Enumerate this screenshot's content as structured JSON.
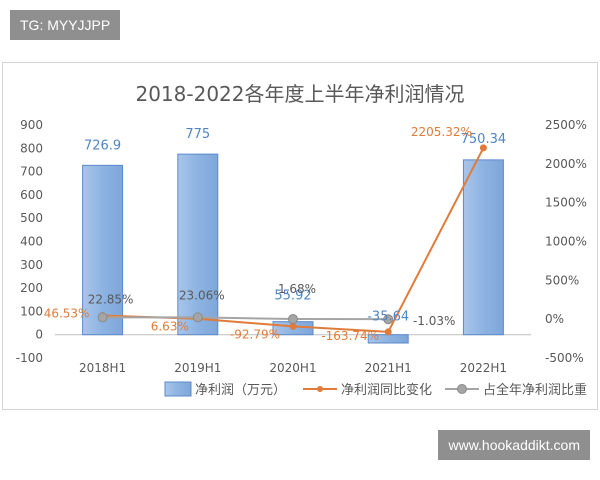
{
  "tag": "TG: MYYJJPP",
  "watermark": "www.hookaddikt.com",
  "chart_data": {
    "type": "bar",
    "title": "2018-2022各年度上半年净利润情况",
    "categories": [
      "2018H1",
      "2019H1",
      "2020H1",
      "2021H1",
      "2022H1"
    ],
    "left_axis": {
      "range": [
        -100,
        900
      ],
      "ticks": [
        "900",
        "800",
        "700",
        "600",
        "500",
        "400",
        "300",
        "200",
        "100",
        "0",
        "-100"
      ]
    },
    "right_axis": {
      "range": [
        -500,
        2500
      ],
      "ticks": [
        "2500%",
        "2000%",
        "1500%",
        "1000%",
        "500%",
        "0%",
        "-500%"
      ]
    },
    "series": [
      {
        "name": "净利润（万元）",
        "kind": "bar",
        "axis": "left",
        "color": "#8db3e2",
        "values": [
          726.9,
          775,
          55.92,
          -35.64,
          750.34
        ],
        "labels": [
          "726.9",
          "775",
          "55.92",
          "-35.64",
          "750.34"
        ]
      },
      {
        "name": "净利润同比变化",
        "kind": "line",
        "axis": "right",
        "color": "#e07b39",
        "values": [
          46.53,
          6.63,
          -92.79,
          -163.74,
          2205.32
        ],
        "labels": [
          "46.53%",
          "6.63%",
          "-92.79%",
          "-163.74%",
          "2205.32%"
        ]
      },
      {
        "name": "占全年净利润比重",
        "kind": "line",
        "axis": "right",
        "color": "#a5a5a5",
        "values": [
          22.85,
          23.06,
          1.68,
          -1.03,
          null
        ],
        "labels": [
          "22.85%",
          "23.06%",
          "1.68%",
          "-1.03%",
          ""
        ]
      }
    ],
    "legend": "bottom",
    "grid": false
  }
}
